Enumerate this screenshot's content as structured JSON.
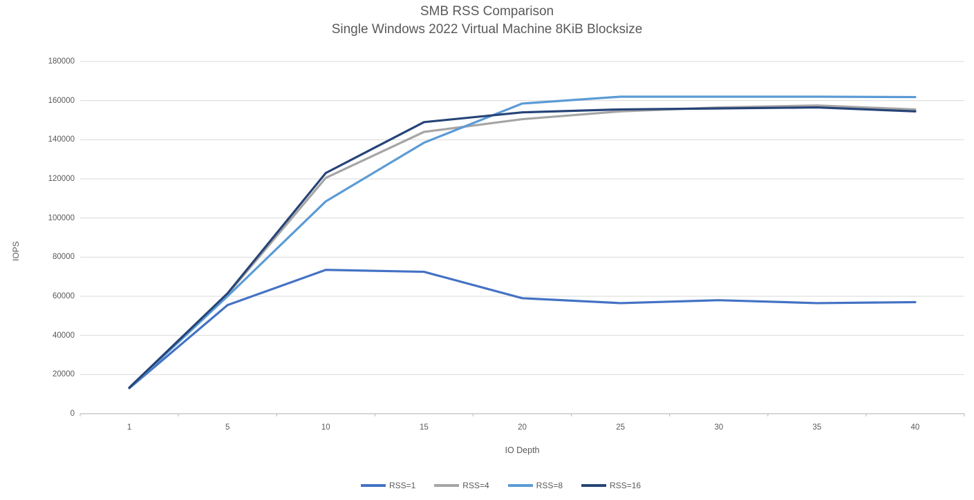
{
  "colors": {
    "text": "#595959",
    "gridline": "#D9D9D9",
    "axis": "#BFBFBF",
    "background": "#FFFFFF"
  },
  "chart_data": {
    "type": "line",
    "title": "SMB RSS Comparison",
    "subtitle": "Single Windows 2022 Virtual Machine 8KiB Blocksize",
    "xlabel": "IO Depth",
    "ylabel": "IOPS",
    "categories": [
      1,
      5,
      10,
      15,
      20,
      25,
      30,
      35,
      40
    ],
    "ylim": [
      0,
      180000
    ],
    "ytick_step": 20000,
    "grid": true,
    "legend_position": "bottom",
    "series": [
      {
        "name": "RSS=1",
        "color": "#4472C4",
        "values": [
          13000,
          55500,
          73500,
          72500,
          59000,
          56500,
          58000,
          56500,
          57000
        ]
      },
      {
        "name": "RSS=4",
        "color": "#A5A5A5",
        "values": [
          13200,
          61000,
          120500,
          144000,
          150500,
          154500,
          156500,
          157500,
          155500
        ]
      },
      {
        "name": "RSS=8",
        "color": "#5B9BD5",
        "values": [
          13100,
          60000,
          108500,
          138500,
          158500,
          162000,
          162000,
          162000,
          161800
        ]
      },
      {
        "name": "RSS=16",
        "color": "#264478",
        "values": [
          13300,
          61500,
          123000,
          149000,
          154000,
          155500,
          156000,
          156500,
          154500
        ]
      }
    ]
  }
}
